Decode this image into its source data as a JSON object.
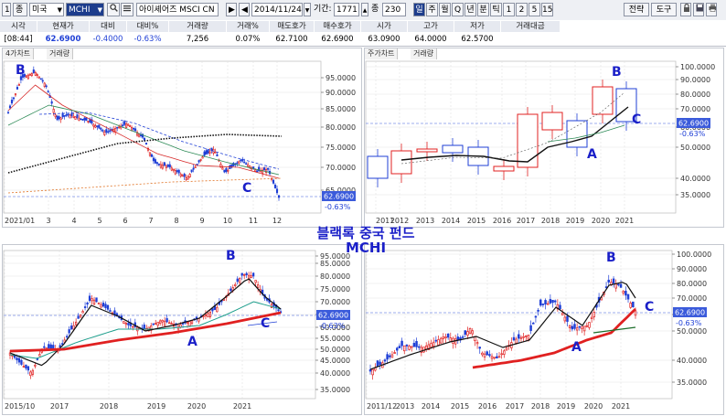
{
  "toolbar": {
    "f1": "1",
    "f2": "종",
    "market": "미국",
    "symbol": "MCHI",
    "name": "아이셰어즈 MSCI CN",
    "date": "2014/11/24",
    "period_label": "기간:",
    "period_value": "1771",
    "jong_label": "종",
    "jong_value": "230",
    "intervals": [
      "일",
      "주",
      "월",
      "Q",
      "년",
      "분",
      "틱",
      "1",
      "2",
      "5",
      "15"
    ],
    "selected_interval": "일",
    "right_buttons": [
      "전략",
      "도구"
    ]
  },
  "quote": {
    "headers": [
      "시각",
      "현재가",
      "대비",
      "대비%",
      "거래량",
      "거래%",
      "매도호가",
      "매수호가",
      "시가",
      "고가",
      "저가",
      "거래대금"
    ],
    "values": [
      "[08:44]",
      "62.6900",
      "-0.4000",
      "-0.63%",
      "7,256",
      "0.07%",
      "62.7100",
      "62.6900",
      "63.0900",
      "64.0000",
      "62.5700",
      ""
    ]
  },
  "panels": {
    "tl": {
      "tabs": [
        "4가차트",
        "거래량"
      ],
      "y_ticks": [
        "95.0000",
        "90.0000",
        "85.0000",
        "80.0000",
        "75.0000",
        "70.0000",
        "65.0000"
      ],
      "x_ticks": [
        "2021/01",
        "3",
        "4",
        "5",
        "6",
        "7",
        "8",
        "9",
        "10",
        "11",
        "12"
      ],
      "price_tag": "62.6900",
      "pct_tag": "-0.63%",
      "markers": [
        "B",
        "C"
      ]
    },
    "tr": {
      "tabs": [
        "주가차트",
        "거래량"
      ],
      "y_ticks": [
        "100.0000",
        "90.0000",
        "80.0000",
        "70.0000",
        "60.0000",
        "50.0000",
        "40.0000",
        "35.0000"
      ],
      "x_ticks": [
        "2011",
        "2012",
        "2013",
        "2014",
        "2015",
        "2016",
        "2017",
        "2018",
        "2019",
        "2020",
        "2021"
      ],
      "price_tag": "62.6900",
      "pct_tag": "-0.63%",
      "markers": [
        "B",
        "C",
        "A"
      ]
    },
    "bl": {
      "y_ticks": [
        "95.0000",
        "85.0000",
        "80.0000",
        "75.0000",
        "70.0000",
        "65.0000",
        "60.0000",
        "55.0000",
        "50.0000",
        "45.0000",
        "40.0000",
        "35.0000"
      ],
      "x_ticks": [
        "2015/10",
        "2017",
        "2018",
        "2019",
        "2020",
        "2021"
      ],
      "price_tag": "62.6900",
      "pct_tag": "-0.63%",
      "markers": [
        "B",
        "C",
        "A"
      ]
    },
    "br": {
      "y_ticks": [
        "100.0000",
        "90.0000",
        "80.0000",
        "70.0000",
        "60.0000",
        "50.0000",
        "40.0000",
        "35.0000"
      ],
      "x_ticks": [
        "2011/12",
        "2013",
        "2014",
        "2015",
        "2016",
        "2017",
        "2018",
        "2019",
        "2020",
        "2021"
      ],
      "price_tag": "62.6900",
      "pct_tag": "-0.63%",
      "markers": [
        "B",
        "C",
        "A"
      ]
    }
  },
  "overlay_title": {
    "line1": "블랙록 중국 펀드",
    "line2": "MCHI"
  },
  "colors": {
    "marker": "#1a1fc8",
    "up": "#e02020",
    "down": "#1f3fd6",
    "price_tag_bg": "#3b5bdb",
    "ma_red": "#e02020",
    "ma_black": "#111111",
    "ma_green": "#2e8b57"
  }
}
